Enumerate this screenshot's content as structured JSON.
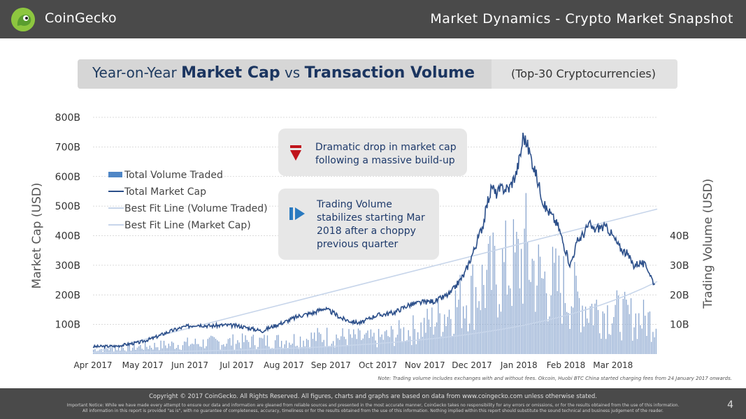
{
  "header": {
    "brand": "CoinGecko",
    "title": "Market Dynamics - Crypto Market Snapshot"
  },
  "title_bar": {
    "prefix": "Year-on-Year",
    "market_cap": "Market Cap",
    "vs": "vs",
    "volume": "Transaction Volume",
    "sub": "(Top-30 Cryptocurrencies)"
  },
  "annotations": [
    {
      "text": "Dramatic drop in market cap following a massive build-up",
      "icon": "down-arrow-icon"
    },
    {
      "text": "Trading Volume stabilizes starting Mar 2018 after a choppy previous quarter",
      "icon": "play-forward-icon"
    }
  ],
  "colors": {
    "header": "#4a4a4a",
    "line": "#2c4f8a",
    "bar": "#8aa6cf",
    "fit_line": "#c7d5ea",
    "accent_red": "#c0141b",
    "accent_blue": "#2a7ac0"
  },
  "chart_data": {
    "type": "bar+line",
    "ylabel_left": "Market Cap (USD)",
    "ylabel_right": "Trading Volume (USD)",
    "yticks_left": [
      "800B",
      "700B",
      "600B",
      "500B",
      "400B",
      "300B",
      "200B",
      "100B"
    ],
    "yticks_right": [
      "40B",
      "30B",
      "20B",
      "10B"
    ],
    "ylim_left": [
      0,
      800
    ],
    "ylim_right": [
      0,
      80
    ],
    "xticks": [
      "Apr 2017",
      "May 2017",
      "Jun 2017",
      "Jul 2017",
      "Aug 2017",
      "Sep 2017",
      "Oct 2017",
      "Nov 2017",
      "Dec 2017",
      "Jan 2018",
      "Feb 2018",
      "Mar 2018"
    ],
    "legend": [
      "Total Volume Traded",
      "Total Market Cap",
      "Best Fit Line (Volume Traded)",
      "Best Fit Line (Market Cap)"
    ],
    "market_cap_points": [
      [
        0,
        25
      ],
      [
        0.5,
        27
      ],
      [
        1.0,
        40
      ],
      [
        1.3,
        55
      ],
      [
        1.6,
        75
      ],
      [
        1.9,
        90
      ],
      [
        2.2,
        100
      ],
      [
        2.5,
        95
      ],
      [
        2.8,
        98
      ],
      [
        3.1,
        95
      ],
      [
        3.4,
        85
      ],
      [
        3.6,
        78
      ],
      [
        3.8,
        92
      ],
      [
        4.1,
        110
      ],
      [
        4.4,
        130
      ],
      [
        4.7,
        140
      ],
      [
        4.9,
        155
      ],
      [
        5.1,
        140
      ],
      [
        5.3,
        120
      ],
      [
        5.5,
        110
      ],
      [
        5.7,
        105
      ],
      [
        6.0,
        130
      ],
      [
        6.4,
        140
      ],
      [
        6.7,
        165
      ],
      [
        7.0,
        175
      ],
      [
        7.3,
        180
      ],
      [
        7.6,
        205
      ],
      [
        7.9,
        270
      ],
      [
        8.1,
        350
      ],
      [
        8.3,
        440
      ],
      [
        8.4,
        520
      ],
      [
        8.5,
        570
      ],
      [
        8.55,
        540
      ],
      [
        8.7,
        560
      ],
      [
        8.85,
        560
      ],
      [
        9.0,
        610
      ],
      [
        9.1,
        680
      ],
      [
        9.15,
        740
      ],
      [
        9.25,
        700
      ],
      [
        9.4,
        620
      ],
      [
        9.5,
        560
      ],
      [
        9.6,
        500
      ],
      [
        9.75,
        470
      ],
      [
        9.9,
        430
      ],
      [
        10.05,
        350
      ],
      [
        10.15,
        300
      ],
      [
        10.3,
        380
      ],
      [
        10.45,
        410
      ],
      [
        10.55,
        440
      ],
      [
        10.65,
        420
      ],
      [
        10.8,
        430
      ],
      [
        10.95,
        425
      ],
      [
        11.05,
        400
      ],
      [
        11.2,
        360
      ],
      [
        11.35,
        340
      ],
      [
        11.5,
        300
      ],
      [
        11.65,
        310
      ],
      [
        11.8,
        290
      ],
      [
        11.9,
        250
      ],
      [
        11.95,
        235
      ]
    ],
    "volume_profile_points": [
      [
        0,
        1.5
      ],
      [
        1,
        2.5
      ],
      [
        2,
        3.5
      ],
      [
        3,
        4.2
      ],
      [
        4,
        4.5
      ],
      [
        5,
        6
      ],
      [
        6,
        5
      ],
      [
        7,
        9
      ],
      [
        7.5,
        14
      ],
      [
        8,
        20
      ],
      [
        8.5,
        26
      ],
      [
        9,
        30
      ],
      [
        9.2,
        34
      ],
      [
        9.5,
        25
      ],
      [
        10,
        22
      ],
      [
        10.5,
        16
      ],
      [
        11,
        14
      ],
      [
        11.5,
        12
      ],
      [
        12,
        11
      ]
    ],
    "best_fit_market_cap": [
      [
        0,
        5
      ],
      [
        12,
        490
      ]
    ],
    "best_fit_volume_log": [
      [
        0,
        0.5
      ],
      [
        12,
        24.5
      ]
    ]
  },
  "note": "Note: Trading volume includes exchanges with and without fees. Okcoin, Huobi BTC China started charging fees from 24 January 2017 onwards.",
  "footer": {
    "copyright": "Copyright © 2017 CoinGecko. All Rights Reserved. All figures, charts and graphs are based on data from www.coingecko.com unless otherwise stated.",
    "notice_line1": "Important Notice: While we have made every attempt to ensure our data and information are gleaned from reliable sources and presented in the most accurate manner, CoinGecko takes no responsibility for any errors or omissions, or for the results obtained from the use of this information.",
    "notice_line2": "All information in this report is provided \"as is\", with no guarantee of completeness, accuracy, timeliness or for the results obtained from the use of this information. Nothing implied within this report should substitute the sound technical and business judgement of the reader.",
    "page": "4"
  }
}
